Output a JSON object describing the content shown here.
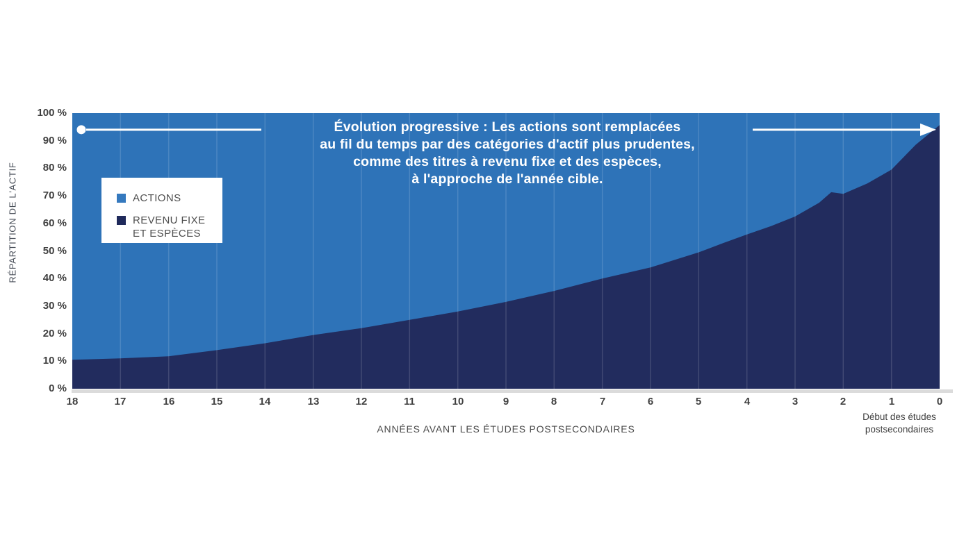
{
  "colors": {
    "equities_area": "#2E73B8",
    "fixed_income_area": "#222C5E",
    "legend_equities_swatch": "#3579BE",
    "legend_fixed_income_swatch": "#1F2A5B",
    "baseline": "#DBDBDB",
    "gridline": "rgba(255,255,255,0.14)",
    "annotation": "#FFFFFF",
    "tick_text": "#3F3F3F"
  },
  "legend": {
    "items": [
      {
        "label": "ACTIONS",
        "color": "#3579BE"
      },
      {
        "label": "REVENU FIXE\nET ESPÈCES",
        "color": "#1F2A5B"
      }
    ]
  },
  "chart_data": {
    "type": "area",
    "stacked": true,
    "annotation": {
      "lines": [
        "Évolution progressive : Les actions sont remplacées",
        "au fil du temps par des catégories d'actif plus prudentes,",
        "comme des titres à revenu fixe et des espèces,",
        "à l'approche de l'année cible."
      ]
    },
    "x_axis": {
      "label": "ANNÉES AVANT LES ÉTUDES POSTSECONDAIRES",
      "ticks": [
        "18",
        "17",
        "16",
        "15",
        "14",
        "13",
        "12",
        "11",
        "10",
        "9",
        "8",
        "7",
        "6",
        "5",
        "4",
        "3",
        "2",
        "1",
        "0"
      ],
      "range": [
        18,
        0
      ],
      "end_note_lines": [
        "Début des études",
        "postsecondaires"
      ]
    },
    "y_axis": {
      "label": "RÉPARTITION DE L'ACTIF",
      "ticks": [
        "100 %",
        "90 %",
        "80 %",
        "70 %",
        "60 %",
        "50 %",
        "40 %",
        "30 %",
        "20 %",
        "10 %",
        "0 %"
      ],
      "range": [
        0,
        100
      ],
      "unit": "%"
    },
    "grid": "vertical-only",
    "legend_position": "top-left",
    "series": [
      {
        "name": "ACTIONS",
        "color": "#2E73B8",
        "role": "fills remainder of stack up to 100%"
      },
      {
        "name": "REVENU FIXE ET ESPÈCES",
        "color": "#222C5E",
        "points": [
          {
            "x": 18,
            "y": 10.5
          },
          {
            "x": 17,
            "y": 11
          },
          {
            "x": 16,
            "y": 11.8
          },
          {
            "x": 15,
            "y": 14
          },
          {
            "x": 14,
            "y": 16.5
          },
          {
            "x": 13,
            "y": 19.5
          },
          {
            "x": 12,
            "y": 22
          },
          {
            "x": 11,
            "y": 25
          },
          {
            "x": 10,
            "y": 28
          },
          {
            "x": 9,
            "y": 31.5
          },
          {
            "x": 8,
            "y": 35.5
          },
          {
            "x": 7,
            "y": 40
          },
          {
            "x": 6,
            "y": 44
          },
          {
            "x": 5,
            "y": 49.5
          },
          {
            "x": 4.5,
            "y": 52.8
          },
          {
            "x": 4,
            "y": 56
          },
          {
            "x": 3.5,
            "y": 59
          },
          {
            "x": 3,
            "y": 62.5
          },
          {
            "x": 2.5,
            "y": 67.5
          },
          {
            "x": 2.25,
            "y": 71.3
          },
          {
            "x": 2,
            "y": 70.7
          },
          {
            "x": 1.5,
            "y": 74.5
          },
          {
            "x": 1,
            "y": 79.5
          },
          {
            "x": 0.5,
            "y": 88.5
          },
          {
            "x": 0,
            "y": 95.7
          }
        ]
      }
    ]
  }
}
